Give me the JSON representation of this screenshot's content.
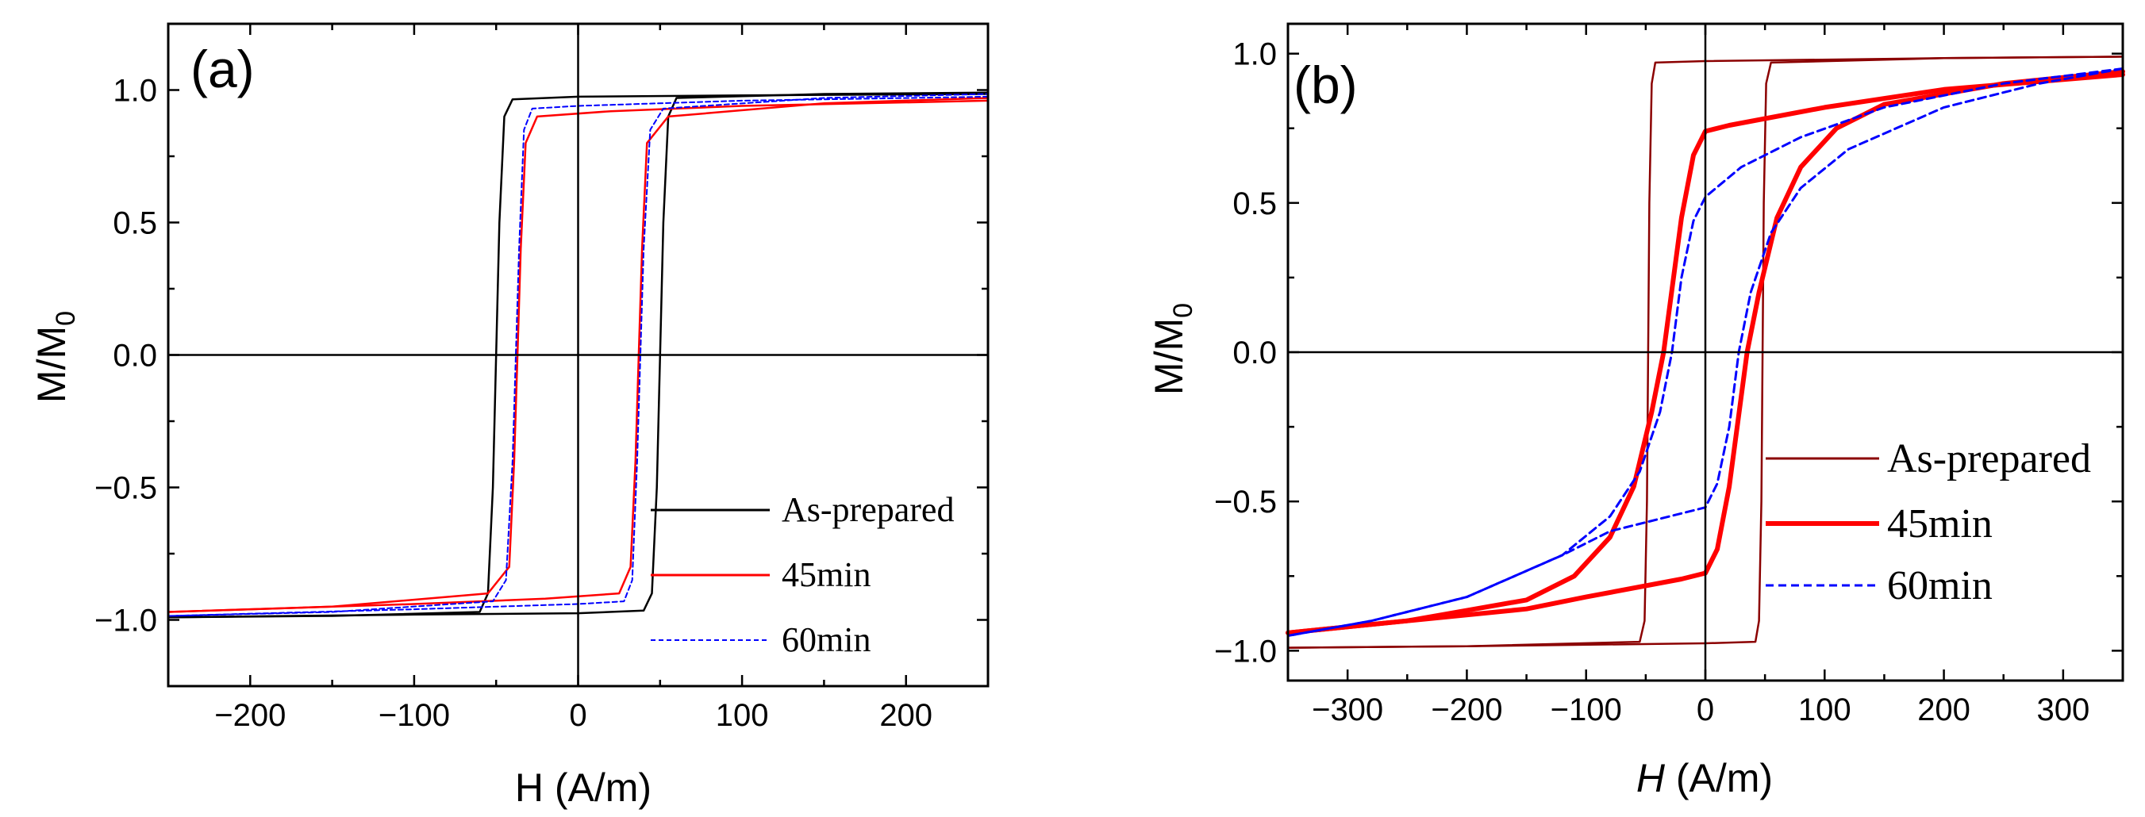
{
  "chart_data": [
    {
      "type": "line",
      "panel_label": "(a)",
      "xlabel": "H (A/m)",
      "ylabel_main": "M/M",
      "ylabel_sub": "0",
      "xlim": [
        -250,
        250
      ],
      "ylim": [
        -1.25,
        1.25
      ],
      "xticks": [
        -200,
        -100,
        0,
        100,
        200
      ],
      "xtick_labels": [
        "−200",
        "−100",
        "0",
        "100",
        "200"
      ],
      "yticks": [
        -1.0,
        -0.5,
        0.0,
        0.5,
        1.0
      ],
      "ytick_labels": [
        "−1.0",
        "−0.5",
        "0.0",
        "0.5",
        "1.0"
      ],
      "legend_position": "lower-right",
      "series": [
        {
          "name": "As-prepared",
          "color": "#000000",
          "dash": "solid",
          "descending": [
            [
              250,
              0.985
            ],
            [
              100,
              0.98
            ],
            [
              0,
              0.975
            ],
            [
              -40,
              0.965
            ],
            [
              -45,
              0.9
            ],
            [
              -48,
              0.5
            ],
            [
              -50,
              0.0
            ],
            [
              -52,
              -0.5
            ],
            [
              -55,
              -0.9
            ],
            [
              -60,
              -0.97
            ],
            [
              -150,
              -0.985
            ],
            [
              -250,
              -0.99
            ]
          ],
          "ascending": [
            [
              -250,
              -0.99
            ],
            [
              -100,
              -0.98
            ],
            [
              0,
              -0.975
            ],
            [
              40,
              -0.965
            ],
            [
              45,
              -0.9
            ],
            [
              48,
              -0.5
            ],
            [
              50,
              0.0
            ],
            [
              52,
              0.5
            ],
            [
              55,
              0.9
            ],
            [
              60,
              0.97
            ],
            [
              150,
              0.985
            ],
            [
              250,
              0.99
            ]
          ]
        },
        {
          "name": "45min",
          "color": "#ff0000",
          "dash": "solid",
          "descending": [
            [
              250,
              0.96
            ],
            [
              100,
              0.94
            ],
            [
              20,
              0.92
            ],
            [
              -25,
              0.9
            ],
            [
              -32,
              0.8
            ],
            [
              -35,
              0.4
            ],
            [
              -37,
              0.0
            ],
            [
              -39,
              -0.4
            ],
            [
              -42,
              -0.8
            ],
            [
              -55,
              -0.9
            ],
            [
              -150,
              -0.95
            ],
            [
              -250,
              -0.97
            ]
          ],
          "ascending": [
            [
              -250,
              -0.97
            ],
            [
              -100,
              -0.94
            ],
            [
              -20,
              -0.92
            ],
            [
              25,
              -0.9
            ],
            [
              32,
              -0.8
            ],
            [
              35,
              -0.4
            ],
            [
              37,
              0.0
            ],
            [
              39,
              0.4
            ],
            [
              42,
              0.8
            ],
            [
              55,
              0.9
            ],
            [
              150,
              0.95
            ],
            [
              250,
              0.97
            ]
          ]
        },
        {
          "name": "60min",
          "color": "#0000ff",
          "dash": "dashed",
          "descending": [
            [
              250,
              0.975
            ],
            [
              100,
              0.96
            ],
            [
              0,
              0.94
            ],
            [
              -28,
              0.93
            ],
            [
              -33,
              0.85
            ],
            [
              -36,
              0.4
            ],
            [
              -38,
              0.0
            ],
            [
              -40,
              -0.4
            ],
            [
              -44,
              -0.85
            ],
            [
              -52,
              -0.93
            ],
            [
              -150,
              -0.97
            ],
            [
              -250,
              -0.985
            ]
          ],
          "ascending": [
            [
              -250,
              -0.985
            ],
            [
              -100,
              -0.96
            ],
            [
              0,
              -0.94
            ],
            [
              28,
              -0.93
            ],
            [
              33,
              -0.85
            ],
            [
              36,
              -0.4
            ],
            [
              38,
              0.0
            ],
            [
              40,
              0.4
            ],
            [
              44,
              0.85
            ],
            [
              52,
              0.93
            ],
            [
              150,
              0.97
            ],
            [
              250,
              0.985
            ]
          ]
        }
      ]
    },
    {
      "type": "line",
      "panel_label": "(b)",
      "xlabel": "H (A/m)",
      "xlabel_italic_part": "H",
      "xlabel_rest": " (A/m)",
      "ylabel_main": "M/M",
      "ylabel_sub": "0",
      "xlim": [
        -350,
        350
      ],
      "ylim": [
        -1.1,
        1.1
      ],
      "xticks": [
        -300,
        -200,
        -100,
        0,
        100,
        200,
        300
      ],
      "xtick_labels": [
        "−300",
        "−200",
        "−100",
        "0",
        "100",
        "200",
        "300"
      ],
      "yticks": [
        -1.0,
        -0.5,
        0.0,
        0.5,
        1.0
      ],
      "ytick_labels": [
        "−1.0",
        "−0.5",
        "0.0",
        "0.5",
        "1.0"
      ],
      "legend_position": "lower-right",
      "series": [
        {
          "name": "As-prepared",
          "color": "#8b0000",
          "dash": "solid",
          "descending": [
            [
              350,
              0.99
            ],
            [
              200,
              0.985
            ],
            [
              0,
              0.975
            ],
            [
              -42,
              0.97
            ],
            [
              -45,
              0.9
            ],
            [
              -47,
              0.5
            ],
            [
              -48,
              0.0
            ],
            [
              -49,
              -0.5
            ],
            [
              -51,
              -0.9
            ],
            [
              -55,
              -0.97
            ],
            [
              -200,
              -0.985
            ],
            [
              -350,
              -0.99
            ]
          ],
          "ascending": [
            [
              -350,
              -0.99
            ],
            [
              -200,
              -0.985
            ],
            [
              0,
              -0.975
            ],
            [
              42,
              -0.97
            ],
            [
              45,
              -0.9
            ],
            [
              47,
              -0.5
            ],
            [
              48,
              0.0
            ],
            [
              49,
              0.5
            ],
            [
              51,
              0.9
            ],
            [
              55,
              0.97
            ],
            [
              200,
              0.985
            ],
            [
              350,
              0.99
            ]
          ]
        },
        {
          "name": "45min",
          "color": "#ff0000",
          "dash": "solid",
          "descending": [
            [
              350,
              0.93
            ],
            [
              200,
              0.88
            ],
            [
              100,
              0.82
            ],
            [
              20,
              0.76
            ],
            [
              0,
              0.74
            ],
            [
              -10,
              0.66
            ],
            [
              -20,
              0.45
            ],
            [
              -30,
              0.15
            ],
            [
              -35,
              0.0
            ],
            [
              -45,
              -0.2
            ],
            [
              -60,
              -0.45
            ],
            [
              -80,
              -0.62
            ],
            [
              -110,
              -0.75
            ],
            [
              -150,
              -0.83
            ],
            [
              -250,
              -0.9
            ],
            [
              -350,
              -0.94
            ]
          ],
          "ascending": [
            [
              -350,
              -0.94
            ],
            [
              -250,
              -0.9
            ],
            [
              -150,
              -0.86
            ],
            [
              -100,
              -0.82
            ],
            [
              -20,
              -0.76
            ],
            [
              0,
              -0.74
            ],
            [
              10,
              -0.66
            ],
            [
              20,
              -0.45
            ],
            [
              30,
              -0.15
            ],
            [
              35,
              0.0
            ],
            [
              45,
              0.2
            ],
            [
              60,
              0.45
            ],
            [
              80,
              0.62
            ],
            [
              110,
              0.75
            ],
            [
              150,
              0.83
            ],
            [
              250,
              0.9
            ],
            [
              350,
              0.94
            ]
          ]
        },
        {
          "name": "60min",
          "color": "#0000ff",
          "dash": "dashed",
          "descending": [
            [
              350,
              0.95
            ],
            [
              250,
              0.9
            ],
            [
              150,
              0.82
            ],
            [
              80,
              0.72
            ],
            [
              30,
              0.62
            ],
            [
              0,
              0.52
            ],
            [
              -10,
              0.44
            ],
            [
              -20,
              0.25
            ],
            [
              -28,
              0.0
            ],
            [
              -38,
              -0.2
            ],
            [
              -55,
              -0.4
            ],
            [
              -80,
              -0.55
            ],
            [
              -120,
              -0.68
            ],
            [
              -200,
              -0.82
            ],
            [
              -280,
              -0.9
            ],
            [
              -350,
              -0.95
            ]
          ],
          "ascending": [
            [
              -350,
              -0.95
            ],
            [
              -280,
              -0.9
            ],
            [
              -200,
              -0.82
            ],
            [
              -120,
              -0.68
            ],
            [
              -80,
              -0.6
            ],
            [
              0,
              -0.52
            ],
            [
              10,
              -0.44
            ],
            [
              20,
              -0.25
            ],
            [
              28,
              0.0
            ],
            [
              38,
              0.2
            ],
            [
              55,
              0.4
            ],
            [
              80,
              0.55
            ],
            [
              120,
              0.68
            ],
            [
              200,
              0.82
            ],
            [
              280,
              0.9
            ],
            [
              350,
              0.95
            ]
          ]
        }
      ]
    }
  ]
}
